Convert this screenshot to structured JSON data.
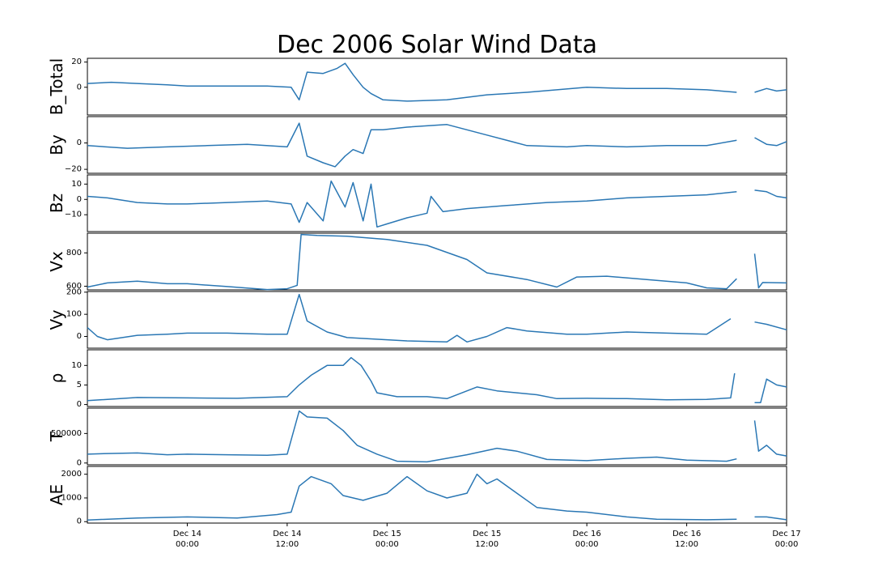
{
  "chart_data": {
    "type": "line",
    "title": "Dec 2006 Solar Wind Data",
    "color": "#2a77b4",
    "x_axis": {
      "range_days": [
        13.5,
        17.0
      ],
      "ticks": [
        {
          "x": 14.0,
          "date": "Dec 14",
          "time": "00:00"
        },
        {
          "x": 14.5,
          "date": "Dec 14",
          "time": "12:00"
        },
        {
          "x": 15.0,
          "date": "Dec 15",
          "time": "00:00"
        },
        {
          "x": 15.5,
          "date": "Dec 15",
          "time": "12:00"
        },
        {
          "x": 16.0,
          "date": "Dec 16",
          "time": "00:00"
        },
        {
          "x": 16.5,
          "date": "Dec 16",
          "time": "12:00"
        },
        {
          "x": 17.0,
          "date": "Dec 17",
          "time": "00:00"
        }
      ]
    },
    "data_gap": [
      16.76,
      16.84
    ],
    "panels": [
      {
        "name": "B_Total",
        "ylabel": "B_Total",
        "ylim": [
          -22,
          23
        ],
        "yticks": [
          {
            "v": 0,
            "label": "0"
          },
          {
            "v": 20,
            "label": "20"
          }
        ],
        "points": [
          [
            13.5,
            3
          ],
          [
            13.62,
            4
          ],
          [
            13.75,
            3
          ],
          [
            13.9,
            2
          ],
          [
            14.0,
            1
          ],
          [
            14.2,
            1
          ],
          [
            14.4,
            1
          ],
          [
            14.52,
            0
          ],
          [
            14.56,
            -10
          ],
          [
            14.6,
            12
          ],
          [
            14.68,
            11
          ],
          [
            14.75,
            15
          ],
          [
            14.79,
            19
          ],
          [
            14.83,
            10
          ],
          [
            14.88,
            0
          ],
          [
            14.92,
            -5
          ],
          [
            14.98,
            -10
          ],
          [
            15.1,
            -11
          ],
          [
            15.3,
            -10
          ],
          [
            15.5,
            -6
          ],
          [
            15.7,
            -4
          ],
          [
            16.0,
            0
          ],
          [
            16.2,
            -1
          ],
          [
            16.4,
            -1
          ],
          [
            16.6,
            -2
          ],
          [
            16.75,
            -4
          ],
          [
            16.84,
            -4
          ],
          [
            16.9,
            -1
          ],
          [
            16.95,
            -3
          ],
          [
            17.0,
            -2
          ]
        ]
      },
      {
        "name": "By",
        "ylabel": "By",
        "ylim": [
          -23,
          20
        ],
        "yticks": [
          {
            "v": -20,
            "label": "−20"
          },
          {
            "v": 0,
            "label": "0"
          }
        ],
        "points": [
          [
            13.5,
            -2
          ],
          [
            13.7,
            -4
          ],
          [
            13.9,
            -3
          ],
          [
            14.1,
            -2
          ],
          [
            14.3,
            -1
          ],
          [
            14.5,
            -3
          ],
          [
            14.56,
            15
          ],
          [
            14.6,
            -10
          ],
          [
            14.68,
            -15
          ],
          [
            14.74,
            -18
          ],
          [
            14.79,
            -10
          ],
          [
            14.83,
            -5
          ],
          [
            14.88,
            -8
          ],
          [
            14.92,
            10
          ],
          [
            14.98,
            10
          ],
          [
            15.1,
            12
          ],
          [
            15.3,
            14
          ],
          [
            15.5,
            6
          ],
          [
            15.7,
            -2
          ],
          [
            15.9,
            -3
          ],
          [
            16.0,
            -2
          ],
          [
            16.2,
            -3
          ],
          [
            16.4,
            -2
          ],
          [
            16.6,
            -2
          ],
          [
            16.75,
            2
          ],
          [
            16.84,
            4
          ],
          [
            16.9,
            -1
          ],
          [
            16.95,
            -2
          ],
          [
            17.0,
            1
          ]
        ]
      },
      {
        "name": "Bz",
        "ylabel": "Bz",
        "ylim": [
          -21,
          16
        ],
        "yticks": [
          {
            "v": -10,
            "label": "−10"
          },
          {
            "v": 0,
            "label": "0"
          },
          {
            "v": 10,
            "label": "10"
          }
        ],
        "points": [
          [
            13.5,
            2
          ],
          [
            13.6,
            1
          ],
          [
            13.75,
            -2
          ],
          [
            13.9,
            -3
          ],
          [
            14.0,
            -3
          ],
          [
            14.2,
            -2
          ],
          [
            14.4,
            -1
          ],
          [
            14.52,
            -3
          ],
          [
            14.56,
            -15
          ],
          [
            14.6,
            -2
          ],
          [
            14.68,
            -14
          ],
          [
            14.72,
            12
          ],
          [
            14.79,
            -5
          ],
          [
            14.83,
            11
          ],
          [
            14.88,
            -14
          ],
          [
            14.92,
            10
          ],
          [
            14.95,
            -18
          ],
          [
            15.0,
            -16
          ],
          [
            15.1,
            -12
          ],
          [
            15.2,
            -9
          ],
          [
            15.22,
            2
          ],
          [
            15.28,
            -8
          ],
          [
            15.4,
            -6
          ],
          [
            15.6,
            -4
          ],
          [
            15.8,
            -2
          ],
          [
            16.0,
            -1
          ],
          [
            16.2,
            1
          ],
          [
            16.4,
            2
          ],
          [
            16.6,
            3
          ],
          [
            16.75,
            5
          ],
          [
            16.84,
            6
          ],
          [
            16.9,
            5
          ],
          [
            16.95,
            2
          ],
          [
            17.0,
            1
          ]
        ]
      },
      {
        "name": "Vx",
        "ylabel": "Vx",
        "ylim": [
          578,
          918
        ],
        "yticks": [
          {
            "v": 600,
            "label": "600"
          },
          {
            "v": 800,
            "label": "800"
          }
        ],
        "points": [
          [
            13.5,
            595
          ],
          [
            13.6,
            620
          ],
          [
            13.75,
            630
          ],
          [
            13.9,
            615
          ],
          [
            14.0,
            615
          ],
          [
            14.2,
            598
          ],
          [
            14.4,
            580
          ],
          [
            14.5,
            585
          ],
          [
            14.55,
            605
          ],
          [
            14.57,
            910
          ],
          [
            14.65,
            905
          ],
          [
            14.8,
            900
          ],
          [
            15.0,
            880
          ],
          [
            15.2,
            845
          ],
          [
            15.4,
            760
          ],
          [
            15.5,
            680
          ],
          [
            15.7,
            640
          ],
          [
            15.85,
            595
          ],
          [
            15.95,
            655
          ],
          [
            16.1,
            660
          ],
          [
            16.3,
            640
          ],
          [
            16.5,
            620
          ],
          [
            16.6,
            590
          ],
          [
            16.7,
            585
          ],
          [
            16.75,
            645
          ],
          [
            16.84,
            795
          ],
          [
            16.86,
            590
          ],
          [
            16.88,
            622
          ],
          [
            17.0,
            620
          ]
        ]
      },
      {
        "name": "Vy",
        "ylabel": "Vy",
        "ylim": [
          -53,
          203
        ],
        "yticks": [
          {
            "v": 0,
            "label": "0"
          },
          {
            "v": 100,
            "label": "100"
          },
          {
            "v": 200,
            "label": "200"
          }
        ],
        "points": [
          [
            13.5,
            40
          ],
          [
            13.55,
            0
          ],
          [
            13.6,
            -15
          ],
          [
            13.75,
            5
          ],
          [
            13.9,
            10
          ],
          [
            14.0,
            15
          ],
          [
            14.2,
            15
          ],
          [
            14.4,
            10
          ],
          [
            14.5,
            10
          ],
          [
            14.56,
            190
          ],
          [
            14.6,
            70
          ],
          [
            14.7,
            20
          ],
          [
            14.8,
            -5
          ],
          [
            15.0,
            -15
          ],
          [
            15.1,
            -20
          ],
          [
            15.3,
            -25
          ],
          [
            15.35,
            5
          ],
          [
            15.4,
            -25
          ],
          [
            15.5,
            0
          ],
          [
            15.6,
            40
          ],
          [
            15.7,
            25
          ],
          [
            15.9,
            10
          ],
          [
            16.0,
            10
          ],
          [
            16.2,
            20
          ],
          [
            16.4,
            15
          ],
          [
            16.6,
            10
          ],
          [
            16.72,
            80
          ],
          [
            16.78,
            85
          ],
          [
            16.84,
            65
          ],
          [
            16.9,
            55
          ],
          [
            17.0,
            30
          ]
        ]
      },
      {
        "name": "rho",
        "ylabel": "ρ",
        "ylim": [
          -0.5,
          14
        ],
        "yticks": [
          {
            "v": 0,
            "label": "0"
          },
          {
            "v": 5,
            "label": "5"
          },
          {
            "v": 10,
            "label": "10"
          }
        ],
        "points": [
          [
            13.5,
            1
          ],
          [
            13.75,
            1.8
          ],
          [
            14.0,
            1.7
          ],
          [
            14.25,
            1.6
          ],
          [
            14.5,
            2
          ],
          [
            14.56,
            5
          ],
          [
            14.62,
            7.5
          ],
          [
            14.7,
            10
          ],
          [
            14.78,
            10
          ],
          [
            14.82,
            12
          ],
          [
            14.87,
            10
          ],
          [
            14.92,
            6
          ],
          [
            14.95,
            3
          ],
          [
            15.05,
            2
          ],
          [
            15.2,
            2
          ],
          [
            15.3,
            1.5
          ],
          [
            15.45,
            4.5
          ],
          [
            15.55,
            3.5
          ],
          [
            15.65,
            3
          ],
          [
            15.75,
            2.5
          ],
          [
            15.85,
            1.5
          ],
          [
            16.0,
            1.6
          ],
          [
            16.2,
            1.5
          ],
          [
            16.4,
            1.2
          ],
          [
            16.6,
            1.3
          ],
          [
            16.72,
            1.7
          ],
          [
            16.74,
            8
          ],
          [
            16.78,
            5.5
          ],
          [
            16.84,
            0.5
          ],
          [
            16.87,
            0.5
          ],
          [
            16.9,
            6.5
          ],
          [
            16.95,
            5
          ],
          [
            17.0,
            4.5
          ]
        ]
      },
      {
        "name": "T",
        "ylabel": "T",
        "ylim": [
          -30000,
          930000
        ],
        "yticks": [
          {
            "v": 0,
            "label": "0"
          },
          {
            "v": 500000,
            "label": "500000"
          }
        ],
        "points": [
          [
            13.5,
            150000
          ],
          [
            13.6,
            160000
          ],
          [
            13.75,
            170000
          ],
          [
            13.9,
            140000
          ],
          [
            14.0,
            150000
          ],
          [
            14.2,
            140000
          ],
          [
            14.4,
            130000
          ],
          [
            14.5,
            150000
          ],
          [
            14.56,
            880000
          ],
          [
            14.6,
            780000
          ],
          [
            14.7,
            760000
          ],
          [
            14.78,
            550000
          ],
          [
            14.85,
            300000
          ],
          [
            14.95,
            150000
          ],
          [
            15.05,
            30000
          ],
          [
            15.2,
            20000
          ],
          [
            15.4,
            140000
          ],
          [
            15.55,
            250000
          ],
          [
            15.65,
            200000
          ],
          [
            15.8,
            60000
          ],
          [
            16.0,
            40000
          ],
          [
            16.2,
            80000
          ],
          [
            16.35,
            100000
          ],
          [
            16.5,
            50000
          ],
          [
            16.7,
            30000
          ],
          [
            16.75,
            70000
          ],
          [
            16.84,
            720000
          ],
          [
            16.86,
            200000
          ],
          [
            16.9,
            300000
          ],
          [
            16.95,
            150000
          ],
          [
            17.0,
            120000
          ]
        ]
      },
      {
        "name": "AE",
        "ylabel": "AE",
        "ylim": [
          -60,
          2330
        ],
        "yticks": [
          {
            "v": 0,
            "label": "0"
          },
          {
            "v": 1000,
            "label": "1000"
          },
          {
            "v": 2000,
            "label": "2000"
          }
        ],
        "points": [
          [
            13.5,
            70
          ],
          [
            13.75,
            150
          ],
          [
            14.0,
            200
          ],
          [
            14.25,
            150
          ],
          [
            14.45,
            300
          ],
          [
            14.52,
            400
          ],
          [
            14.56,
            1500
          ],
          [
            14.62,
            1900
          ],
          [
            14.72,
            1600
          ],
          [
            14.78,
            1100
          ],
          [
            14.88,
            900
          ],
          [
            15.0,
            1200
          ],
          [
            15.1,
            1900
          ],
          [
            15.2,
            1300
          ],
          [
            15.3,
            1000
          ],
          [
            15.4,
            1200
          ],
          [
            15.45,
            2000
          ],
          [
            15.5,
            1600
          ],
          [
            15.55,
            1800
          ],
          [
            15.65,
            1200
          ],
          [
            15.75,
            600
          ],
          [
            15.9,
            450
          ],
          [
            16.0,
            400
          ],
          [
            16.2,
            200
          ],
          [
            16.35,
            100
          ],
          [
            16.6,
            80
          ],
          [
            16.75,
            100
          ],
          [
            16.84,
            200
          ],
          [
            16.9,
            200
          ],
          [
            17.0,
            80
          ]
        ]
      }
    ]
  }
}
